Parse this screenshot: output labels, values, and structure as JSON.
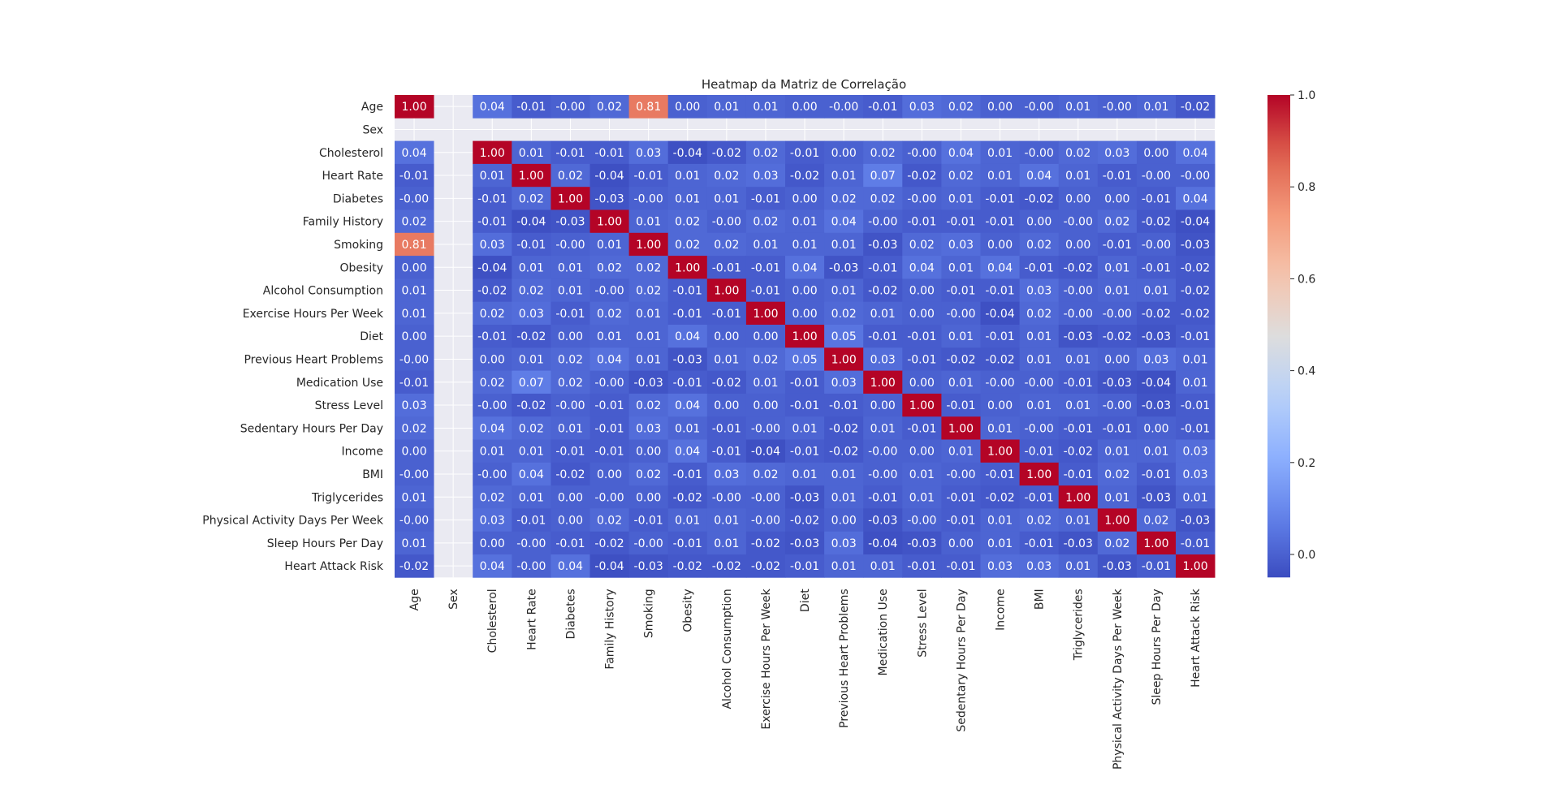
{
  "chart_data": {
    "type": "heatmap",
    "title": "Heatmap da Matriz de Correlação",
    "labels": [
      "Age",
      "Sex",
      "Cholesterol",
      "Heart Rate",
      "Diabetes",
      "Family History",
      "Smoking",
      "Obesity",
      "Alcohol Consumption",
      "Exercise Hours Per Week",
      "Diet",
      "Previous Heart Problems",
      "Medication Use",
      "Stress Level",
      "Sedentary Hours Per Day",
      "Income",
      "BMI",
      "Triglycerides",
      "Physical Activity Days Per Week",
      "Sleep Hours Per Day",
      "Heart Attack Risk"
    ],
    "matrix": [
      [
        1.0,
        null,
        0.04,
        -0.01,
        -0.0,
        0.02,
        0.81,
        0.0,
        0.01,
        0.01,
        0.0,
        -0.0,
        -0.01,
        0.03,
        0.02,
        0.0,
        -0.0,
        0.01,
        -0.0,
        0.01,
        -0.02
      ],
      [
        null,
        null,
        null,
        null,
        null,
        null,
        null,
        null,
        null,
        null,
        null,
        null,
        null,
        null,
        null,
        null,
        null,
        null,
        null,
        null,
        null
      ],
      [
        0.04,
        null,
        1.0,
        0.01,
        -0.01,
        -0.01,
        0.03,
        -0.04,
        -0.02,
        0.02,
        -0.01,
        0.0,
        0.02,
        -0.0,
        0.04,
        0.01,
        -0.0,
        0.02,
        0.03,
        0.0,
        0.04
      ],
      [
        -0.01,
        null,
        0.01,
        1.0,
        0.02,
        -0.04,
        -0.01,
        0.01,
        0.02,
        0.03,
        -0.02,
        0.01,
        0.07,
        -0.02,
        0.02,
        0.01,
        0.04,
        0.01,
        -0.01,
        -0.0,
        -0.0
      ],
      [
        -0.0,
        null,
        -0.01,
        0.02,
        1.0,
        -0.03,
        -0.0,
        0.01,
        0.01,
        -0.01,
        0.0,
        0.02,
        0.02,
        -0.0,
        0.01,
        -0.01,
        -0.02,
        0.0,
        0.0,
        -0.01,
        0.04
      ],
      [
        0.02,
        null,
        -0.01,
        -0.04,
        -0.03,
        1.0,
        0.01,
        0.02,
        -0.0,
        0.02,
        0.01,
        0.04,
        -0.0,
        -0.01,
        -0.01,
        -0.01,
        0.0,
        -0.0,
        0.02,
        -0.02,
        -0.04
      ],
      [
        0.81,
        null,
        0.03,
        -0.01,
        -0.0,
        0.01,
        1.0,
        0.02,
        0.02,
        0.01,
        0.01,
        0.01,
        -0.03,
        0.02,
        0.03,
        0.0,
        0.02,
        0.0,
        -0.01,
        -0.0,
        -0.03
      ],
      [
        0.0,
        null,
        -0.04,
        0.01,
        0.01,
        0.02,
        0.02,
        1.0,
        -0.01,
        -0.01,
        0.04,
        -0.03,
        -0.01,
        0.04,
        0.01,
        0.04,
        -0.01,
        -0.02,
        0.01,
        -0.01,
        -0.02
      ],
      [
        0.01,
        null,
        -0.02,
        0.02,
        0.01,
        -0.0,
        0.02,
        -0.01,
        1.0,
        -0.01,
        0.0,
        0.01,
        -0.02,
        0.0,
        -0.01,
        -0.01,
        0.03,
        -0.0,
        0.01,
        0.01,
        -0.02
      ],
      [
        0.01,
        null,
        0.02,
        0.03,
        -0.01,
        0.02,
        0.01,
        -0.01,
        -0.01,
        1.0,
        0.0,
        0.02,
        0.01,
        0.0,
        -0.0,
        -0.04,
        0.02,
        -0.0,
        -0.0,
        -0.02,
        -0.02
      ],
      [
        0.0,
        null,
        -0.01,
        -0.02,
        0.0,
        0.01,
        0.01,
        0.04,
        0.0,
        0.0,
        1.0,
        0.05,
        -0.01,
        -0.01,
        0.01,
        -0.01,
        0.01,
        -0.03,
        -0.02,
        -0.03,
        -0.01
      ],
      [
        -0.0,
        null,
        0.0,
        0.01,
        0.02,
        0.04,
        0.01,
        -0.03,
        0.01,
        0.02,
        0.05,
        1.0,
        0.03,
        -0.01,
        -0.02,
        -0.02,
        0.01,
        0.01,
        0.0,
        0.03,
        0.01
      ],
      [
        -0.01,
        null,
        0.02,
        0.07,
        0.02,
        -0.0,
        -0.03,
        -0.01,
        -0.02,
        0.01,
        -0.01,
        0.03,
        1.0,
        0.0,
        0.01,
        -0.0,
        -0.0,
        -0.01,
        -0.03,
        -0.04,
        0.01
      ],
      [
        0.03,
        null,
        -0.0,
        -0.02,
        -0.0,
        -0.01,
        0.02,
        0.04,
        0.0,
        0.0,
        -0.01,
        -0.01,
        0.0,
        1.0,
        -0.01,
        0.0,
        0.01,
        0.01,
        -0.0,
        -0.03,
        -0.01
      ],
      [
        0.02,
        null,
        0.04,
        0.02,
        0.01,
        -0.01,
        0.03,
        0.01,
        -0.01,
        -0.0,
        0.01,
        -0.02,
        0.01,
        -0.01,
        1.0,
        0.01,
        -0.0,
        -0.01,
        -0.01,
        0.0,
        -0.01
      ],
      [
        0.0,
        null,
        0.01,
        0.01,
        -0.01,
        -0.01,
        0.0,
        0.04,
        -0.01,
        -0.04,
        -0.01,
        -0.02,
        -0.0,
        0.0,
        0.01,
        1.0,
        -0.01,
        -0.02,
        0.01,
        0.01,
        0.03
      ],
      [
        -0.0,
        null,
        -0.0,
        0.04,
        -0.02,
        0.0,
        0.02,
        -0.01,
        0.03,
        0.02,
        0.01,
        0.01,
        -0.0,
        0.01,
        -0.0,
        -0.01,
        1.0,
        -0.01,
        0.02,
        -0.01,
        0.03
      ],
      [
        0.01,
        null,
        0.02,
        0.01,
        0.0,
        -0.0,
        0.0,
        -0.02,
        -0.0,
        -0.0,
        -0.03,
        0.01,
        -0.01,
        0.01,
        -0.01,
        -0.02,
        -0.01,
        1.0,
        0.01,
        -0.03,
        0.01
      ],
      [
        -0.0,
        null,
        0.03,
        -0.01,
        0.0,
        0.02,
        -0.01,
        0.01,
        0.01,
        -0.0,
        -0.02,
        0.0,
        -0.03,
        -0.0,
        -0.01,
        0.01,
        0.02,
        0.01,
        1.0,
        0.02,
        -0.03
      ],
      [
        0.01,
        null,
        0.0,
        -0.0,
        -0.01,
        -0.02,
        -0.0,
        -0.01,
        0.01,
        -0.02,
        -0.03,
        0.03,
        -0.04,
        -0.03,
        0.0,
        0.01,
        -0.01,
        -0.03,
        0.02,
        1.0,
        -0.01
      ],
      [
        -0.02,
        null,
        0.04,
        -0.0,
        0.04,
        -0.04,
        -0.03,
        -0.02,
        -0.02,
        -0.02,
        -0.01,
        0.01,
        0.01,
        -0.01,
        -0.01,
        0.03,
        0.03,
        0.01,
        -0.03,
        -0.01,
        1.0
      ]
    ],
    "value_format": "2 decimals",
    "colormap": "coolwarm",
    "vmin": -0.05,
    "vmax": 1.0,
    "colorbar": {
      "ticks": [
        "0.0",
        "0.2",
        "0.4",
        "0.6",
        "0.8",
        "1.0"
      ]
    },
    "legend": "colorbar right",
    "grid": false,
    "missing_color": "#eaeaf2"
  }
}
